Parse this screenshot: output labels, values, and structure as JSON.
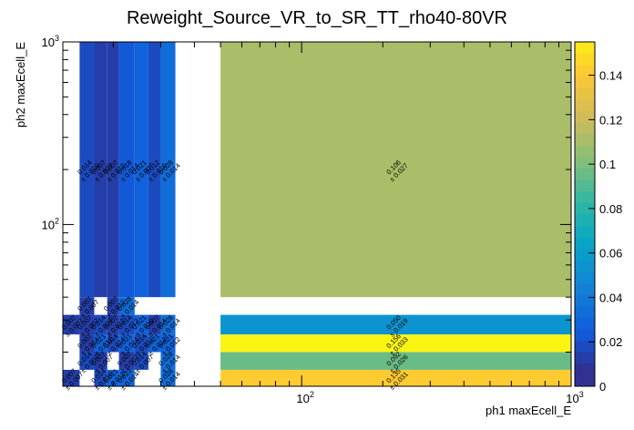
{
  "chart_data": {
    "type": "heatmap",
    "title": "Reweight_Source_VR_to_SR_TT_rho40-80VR",
    "xlabel": "ph1 maxEcell_E",
    "ylabel": "ph2 maxEcell_E",
    "x_scale": "log",
    "y_scale": "log",
    "x_ticks": [
      "10^2",
      "10^3"
    ],
    "y_ticks": [
      "10^2",
      "10^3"
    ],
    "x_edges": [
      13,
      15,
      17,
      19,
      21,
      24,
      27,
      30,
      34,
      38,
      43,
      50,
      1000
    ],
    "y_edges": [
      13,
      16,
      20,
      25,
      32,
      40,
      1000
    ],
    "zlim": [
      0,
      0.155
    ],
    "z_ticks": [
      "0",
      "0.02",
      "0.04",
      "0.06",
      "0.08",
      "0.1",
      "0.12",
      "0.14"
    ],
    "palette": [
      "#352a87",
      "#0f5cdd",
      "#1481d6",
      "#06a4ca",
      "#2eb7a4",
      "#87bf77",
      "#d1bb59",
      "#fec832",
      "#f9fb0e"
    ],
    "cells": [
      {
        "xi": 0,
        "yi": 0,
        "value": 0.007,
        "error": 0.007
      },
      {
        "xi": 2,
        "yi": 0,
        "value": 0.014,
        "error": 0.01
      },
      {
        "xi": 3,
        "yi": 0,
        "value": 0.021,
        "error": 0.012
      },
      {
        "xi": 4,
        "yi": 0,
        "value": 0.023,
        "error": 0.014
      },
      {
        "xi": 7,
        "yi": 0,
        "value": 0.028,
        "error": 0.014
      },
      {
        "xi": 11,
        "yi": 0,
        "value": 0.135,
        "error": 0.031
      },
      {
        "xi": 1,
        "yi": 1,
        "value": 0.014,
        "error": 0.007
      },
      {
        "xi": 2,
        "yi": 1,
        "value": 0.007,
        "error": 0.007
      },
      {
        "xi": 4,
        "yi": 1,
        "value": 0.007,
        "error": 0.007
      },
      {
        "xi": 5,
        "yi": 1,
        "value": 0.014,
        "error": 0.007
      },
      {
        "xi": 7,
        "yi": 1,
        "value": 0.028,
        "error": 0.014
      },
      {
        "xi": 11,
        "yi": 1,
        "value": 0.092,
        "error": 0.026
      },
      {
        "xi": 1,
        "yi": 2,
        "value": 0.007,
        "error": 0.014
      },
      {
        "xi": 2,
        "yi": 2,
        "value": 0.021,
        "error": 0.012
      },
      {
        "xi": 3,
        "yi": 2,
        "value": 0.014,
        "error": 0.014
      },
      {
        "xi": 4,
        "yi": 2,
        "value": 0.021,
        "error": 0.014
      },
      {
        "xi": 5,
        "yi": 2,
        "value": 0.014,
        "error": 0.012
      },
      {
        "xi": 6,
        "yi": 2,
        "value": 0.021,
        "error": 0.012
      },
      {
        "xi": 7,
        "yi": 2,
        "value": 0.021,
        "error": 0.012
      },
      {
        "xi": 11,
        "yi": 2,
        "value": 0.156,
        "error": 0.033
      },
      {
        "xi": 0,
        "yi": 3,
        "value": 0.007,
        "error": 0.007
      },
      {
        "xi": 1,
        "yi": 3,
        "value": 0.007,
        "error": 0.007
      },
      {
        "xi": 2,
        "yi": 3,
        "value": 0.014,
        "error": 0.007
      },
      {
        "xi": 3,
        "yi": 3,
        "value": 0.007,
        "error": 0.012
      },
      {
        "xi": 4,
        "yi": 3,
        "value": 0.014,
        "error": 0.012
      },
      {
        "xi": 5,
        "yi": 3,
        "value": 0.021,
        "error": 0.01
      },
      {
        "xi": 6,
        "yi": 3,
        "value": 0.007,
        "error": 0.014
      },
      {
        "xi": 7,
        "yi": 3,
        "value": 0.028,
        "error": 0.014
      },
      {
        "xi": 11,
        "yi": 3,
        "value": 0.05,
        "error": 0.019
      },
      {
        "xi": 1,
        "yi": 4,
        "value": 0.007,
        "error": 0.007
      },
      {
        "xi": 3,
        "yi": 4,
        "value": 0.007,
        "error": 0.012
      },
      {
        "xi": 4,
        "yi": 4,
        "value": 0.028,
        "error": 0.014
      },
      {
        "xi": 1,
        "yi": 5,
        "value": 0.014,
        "error": 0.01
      },
      {
        "xi": 2,
        "yi": 5,
        "value": 0.007,
        "error": 0.007
      },
      {
        "xi": 3,
        "yi": 5,
        "value": 0.007,
        "error": 0.012
      },
      {
        "xi": 4,
        "yi": 5,
        "value": 0.018,
        "error": 0.014
      },
      {
        "xi": 5,
        "yi": 5,
        "value": 0.021,
        "error": 0.007
      },
      {
        "xi": 6,
        "yi": 5,
        "value": 0.012,
        "error": 0.01
      },
      {
        "xi": 7,
        "yi": 5,
        "value": 0.028,
        "error": 0.014
      },
      {
        "xi": 11,
        "yi": 5,
        "value": 0.106,
        "error": 0.027
      }
    ]
  }
}
